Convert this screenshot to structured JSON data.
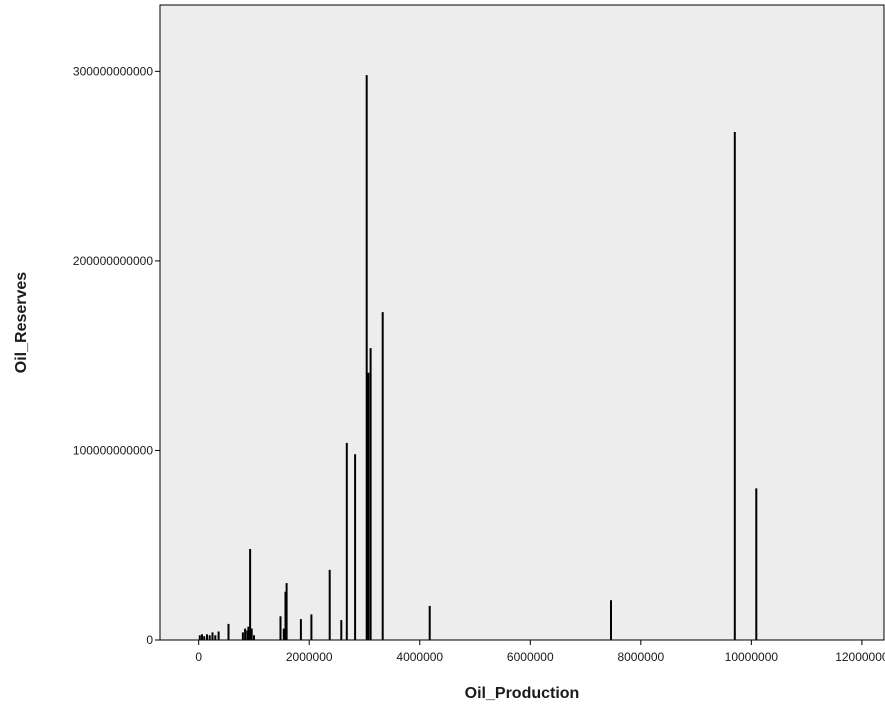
{
  "chart_data": {
    "type": "bar",
    "xlabel": "Oil_Production",
    "ylabel": "Oil_Reserves",
    "xlim": [
      -700000,
      12400000
    ],
    "ylim": [
      0,
      335000000000
    ],
    "x_ticks": [
      0,
      2000000,
      4000000,
      6000000,
      8000000,
      10000000,
      12000000
    ],
    "x_tick_labels": [
      "0",
      "2000000",
      "4000000",
      "6000000",
      "8000000",
      "10000000",
      "12000000"
    ],
    "y_ticks": [
      0,
      100000000000,
      200000000000,
      300000000000
    ],
    "y_tick_labels": [
      "0",
      "100000000000",
      "200000000000",
      "300000000000"
    ],
    "grid": false,
    "plot_background": "#ededed",
    "bar_color": "#000000",
    "points": [
      {
        "x": 20000,
        "y": 2500000000
      },
      {
        "x": 60000,
        "y": 3000000000
      },
      {
        "x": 100000,
        "y": 2000000000
      },
      {
        "x": 150000,
        "y": 3000000000
      },
      {
        "x": 200000,
        "y": 2500000000
      },
      {
        "x": 250000,
        "y": 4000000000
      },
      {
        "x": 300000,
        "y": 2500000000
      },
      {
        "x": 360000,
        "y": 4500000000
      },
      {
        "x": 540000,
        "y": 8500000000
      },
      {
        "x": 800000,
        "y": 4000000000
      },
      {
        "x": 840000,
        "y": 6000000000
      },
      {
        "x": 880000,
        "y": 5000000000
      },
      {
        "x": 900000,
        "y": 7000000000
      },
      {
        "x": 930000,
        "y": 48000000000
      },
      {
        "x": 960000,
        "y": 6000000000
      },
      {
        "x": 1000000,
        "y": 2500000000
      },
      {
        "x": 1480000,
        "y": 12500000000
      },
      {
        "x": 1540000,
        "y": 6000000000
      },
      {
        "x": 1570000,
        "y": 25500000000
      },
      {
        "x": 1590000,
        "y": 30000000000
      },
      {
        "x": 1850000,
        "y": 11000000000
      },
      {
        "x": 2040000,
        "y": 13500000000
      },
      {
        "x": 2370000,
        "y": 37000000000
      },
      {
        "x": 2580000,
        "y": 10500000000
      },
      {
        "x": 2680000,
        "y": 104000000000
      },
      {
        "x": 2830000,
        "y": 98000000000
      },
      {
        "x": 3040000,
        "y": 298000000000
      },
      {
        "x": 3070000,
        "y": 141000000000
      },
      {
        "x": 3110000,
        "y": 154000000000
      },
      {
        "x": 3330000,
        "y": 173000000000
      },
      {
        "x": 4180000,
        "y": 18000000000
      },
      {
        "x": 7460000,
        "y": 21000000000
      },
      {
        "x": 9700000,
        "y": 268000000000
      },
      {
        "x": 10090000,
        "y": 80000000000
      }
    ]
  }
}
